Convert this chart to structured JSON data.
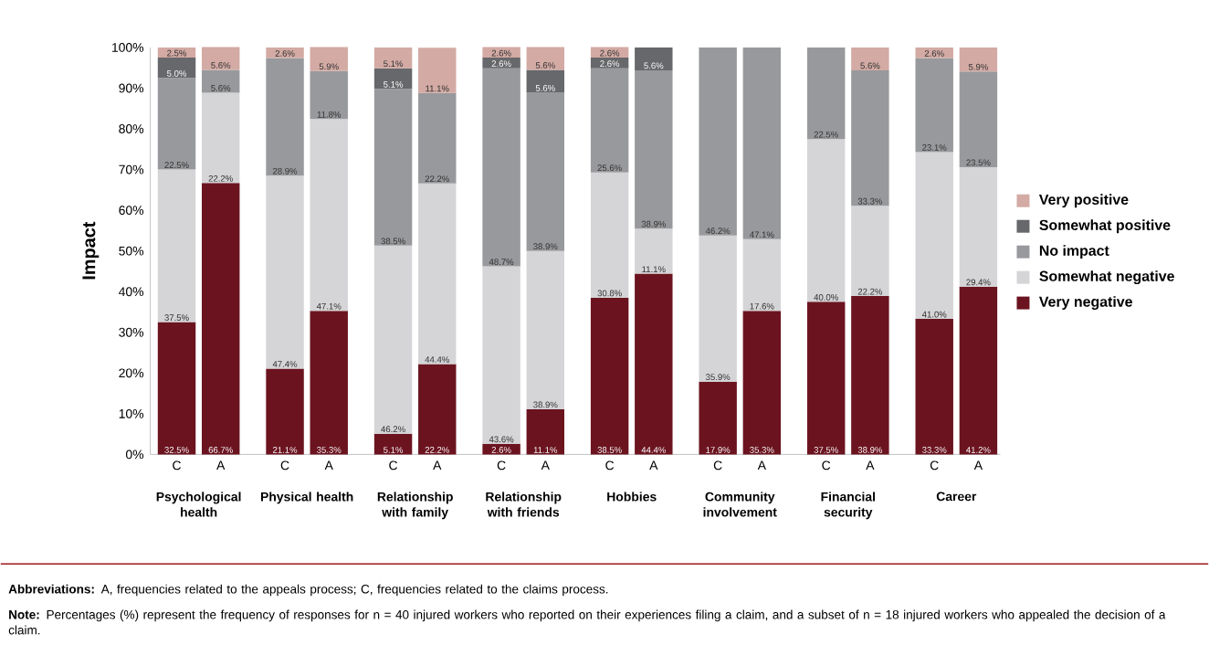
{
  "chart_data": {
    "type": "bar",
    "stacked": true,
    "ylabel": "Impact",
    "legend": "right",
    "categories": [
      "C",
      "A",
      "C",
      "A",
      "C",
      "A",
      "C",
      "A",
      "C",
      "A",
      "C",
      "A",
      "C",
      "A",
      "C",
      "A"
    ],
    "ylim": [
      0,
      100
    ],
    "yticks": [
      {
        "value": 0,
        "label": "0%"
      },
      {
        "value": 10,
        "label": "10%"
      },
      {
        "value": 20,
        "label": "20%"
      },
      {
        "value": 30,
        "label": "30%"
      },
      {
        "value": 40,
        "label": "40%"
      },
      {
        "value": 50,
        "label": "50%"
      },
      {
        "value": 60,
        "label": "60%"
      },
      {
        "value": 70,
        "label": "70%"
      },
      {
        "value": 80,
        "label": "80%"
      },
      {
        "value": 90,
        "label": "90%"
      },
      {
        "value": 100,
        "label": "100%"
      }
    ],
    "series": [
      {
        "name": "Very negative",
        "color": "#6b1420",
        "values": [
          32.5,
          66.7,
          21.1,
          35.3,
          5.1,
          22.2,
          2.6,
          11.1,
          38.5,
          44.4,
          17.9,
          35.3,
          37.5,
          38.9,
          33.3,
          41.2
        ],
        "value_labels": [
          "32.5%",
          "66.7%",
          "21.1%",
          "35.3%",
          "5.1%",
          "22.2%",
          "2.6%",
          "11.1%",
          "38.5%",
          "44.4%",
          "17.9%",
          "35.3%",
          "37.5%",
          "38.9%",
          "33.3%",
          "41.2%"
        ]
      },
      {
        "name": "Somewhat negative",
        "color": "#d5d5d7",
        "values": [
          37.5,
          22.2,
          47.4,
          47.1,
          46.2,
          44.4,
          43.6,
          38.9,
          30.8,
          11.1,
          35.9,
          17.6,
          40.0,
          22.2,
          41.0,
          29.4
        ],
        "value_labels": [
          "37.5%",
          "22.2%",
          "47.4%",
          "47.1%",
          "46.2%",
          "44.4%",
          "43.6%",
          "38.9%",
          "30.8%",
          "11.1%",
          "35.9%",
          "17.6%",
          "40.0%",
          "22.2%",
          "41.0%",
          "29.4%"
        ]
      },
      {
        "name": "No impact",
        "color": "#98999c",
        "values": [
          22.5,
          5.6,
          28.9,
          11.8,
          38.5,
          22.2,
          48.7,
          38.9,
          25.6,
          38.9,
          46.2,
          47.1,
          22.5,
          33.3,
          23.1,
          23.5
        ],
        "value_labels": [
          "22.5%",
          "5.6%",
          "28.9%",
          "11.8%",
          "38.5%",
          "22.2%",
          "48.7%",
          "38.9%",
          "25.6%",
          "38.9%",
          "46.2%",
          "47.1%",
          "22.5%",
          "33.3%",
          "23.1%",
          "23.5%"
        ]
      },
      {
        "name": "Somewhat positive",
        "color": "#67686b",
        "values": [
          5.0,
          null,
          null,
          null,
          5.1,
          null,
          2.6,
          5.6,
          2.6,
          5.6,
          null,
          null,
          null,
          null,
          null,
          null
        ],
        "value_labels": [
          "5.0%",
          null,
          null,
          null,
          "5.1%",
          null,
          "2.6%",
          "5.6%",
          "2.6%",
          "5.6%",
          null,
          null,
          null,
          null,
          null,
          null
        ]
      },
      {
        "name": "Very positive",
        "color": "#d3aaa4",
        "values": [
          2.5,
          5.6,
          2.6,
          5.9,
          5.1,
          11.1,
          2.6,
          5.6,
          2.6,
          null,
          null,
          null,
          null,
          5.6,
          2.6,
          5.9
        ],
        "value_labels": [
          "2.5%",
          "5.6%",
          "2.6%",
          "5.9%",
          "5.1%",
          "11.1%",
          "2.6%",
          "5.6%",
          "2.6%",
          null,
          null,
          null,
          null,
          "5.6%",
          "2.6%",
          "5.9%"
        ]
      }
    ],
    "annotations": [
      "Psychological health",
      "Physical health",
      "Relationship with family",
      "Relationship with friends",
      "Hobbies",
      "Community involvement",
      "Financial security",
      "Career",
      "**Abbreviations:** A, frequencies related to the appeals process; C, frequencies related to the claims process.",
      "**Note:** Percentages (%) represent the frequency of responses for n = 40 injured workers who reported on their experiences filing a claim, and a subset of n = 18 injured workers who appealed the decision of a claim."
    ]
  }
}
